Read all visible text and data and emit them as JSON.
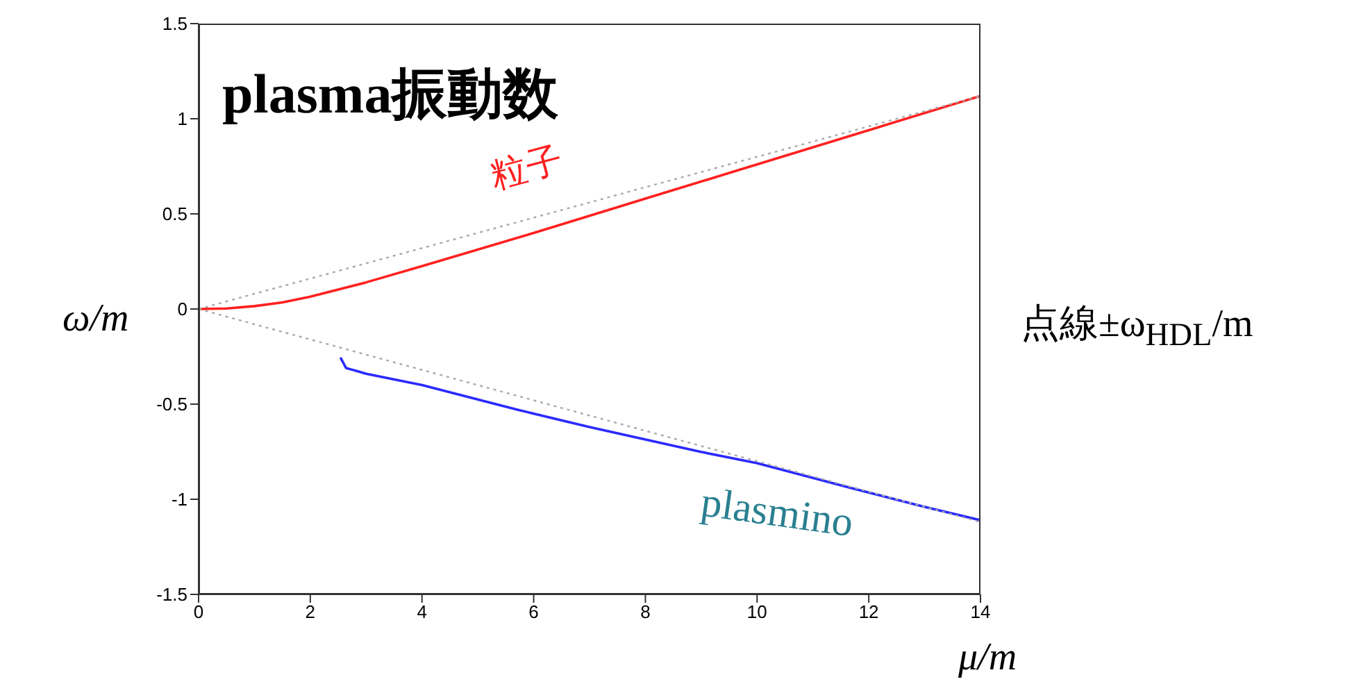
{
  "chart_data": {
    "type": "line",
    "title": "plasma振動数",
    "xlabel": "μ/m",
    "ylabel": "ω/m",
    "annotations": [
      "点線±ω$_{HDL}$/m"
    ],
    "xlim": [
      0,
      14
    ],
    "xticks": [
      0,
      2,
      4,
      6,
      8,
      10,
      12,
      14
    ],
    "ylim": [
      -1.5,
      1.5
    ],
    "yticks": [
      {
        "value": -1.5,
        "label": "-1.5"
      },
      {
        "value": -1,
        "label": "-1"
      },
      {
        "value": -0.5,
        "label": "-0.5"
      },
      {
        "value": 0,
        "label": "0"
      },
      {
        "value": 0.5,
        "label": "0.5"
      },
      {
        "value": 1,
        "label": "1"
      },
      {
        "value": 1.5,
        "label": "1.5"
      }
    ],
    "grid": false,
    "legend": false,
    "marker": "none",
    "series": [
      {
        "name": "粒子",
        "color": "#ff2020",
        "line_style": "solid",
        "x": [
          0,
          0.5,
          1,
          1.5,
          2,
          3,
          4,
          6,
          8,
          10,
          12,
          14
        ],
        "values": [
          0,
          0.003,
          0.015,
          0.035,
          0.065,
          0.14,
          0.225,
          0.4,
          0.58,
          0.76,
          0.94,
          1.12
        ]
      },
      {
        "name": "plasmino",
        "color": "#2a2aff",
        "line_style": "solid",
        "x": [
          2.54,
          2.64,
          3,
          4,
          5.72,
          7,
          8.98,
          10,
          11.67,
          13,
          14
        ],
        "values": [
          -0.255,
          -0.31,
          -0.34,
          -0.4,
          -0.53,
          -0.62,
          -0.75,
          -0.81,
          -0.94,
          -1.04,
          -1.11
        ]
      },
      {
        "x": [
          0,
          14
        ],
        "values": [
          0,
          1.12
        ],
        "color": "#aaaaaa",
        "line_style": "dotted"
      },
      {
        "x": [
          0,
          14
        ],
        "values": [
          0,
          -1.12
        ],
        "color": "#aaaaaa",
        "line_style": "dotted"
      }
    ]
  }
}
